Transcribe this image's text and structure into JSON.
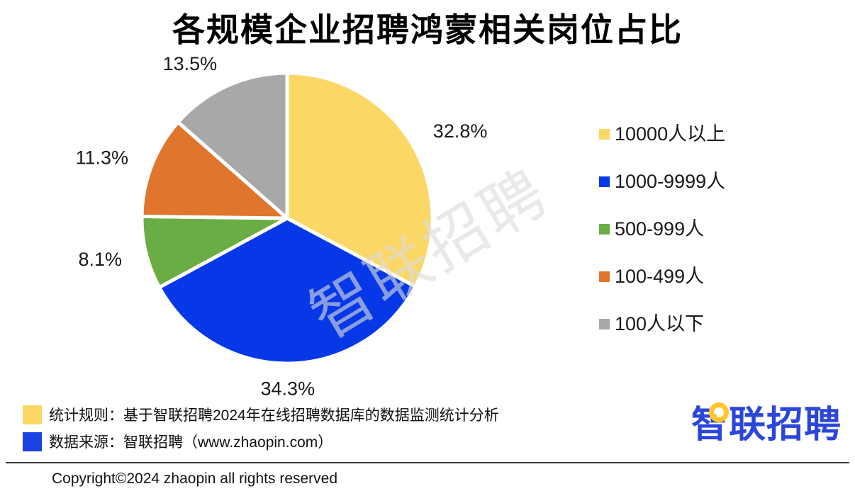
{
  "title": "各规模企业招聘鸿蒙相关岗位占比",
  "watermark_text": "智联招聘",
  "chart_data": {
    "type": "pie",
    "title": "各规模企业招聘鸿蒙相关岗位占比",
    "categories": [
      "10000人以上",
      "1000-9999人",
      "500-999人",
      "100-499人",
      "100人以下"
    ],
    "values": [
      32.8,
      34.3,
      8.1,
      11.3,
      13.5
    ],
    "value_labels": [
      "32.8%",
      "34.3%",
      "8.1%",
      "11.3%",
      "13.5%"
    ],
    "unit": "%",
    "colors": [
      "#FBD765",
      "#0638E8",
      "#6BAD45",
      "#E0762E",
      "#A8A8A8"
    ],
    "start_angle_deg": 0,
    "clockwise": true,
    "slice_gap_color": "#FFFFFF",
    "legend_position": "right"
  },
  "legend": {
    "items": [
      {
        "label": "10000人以上",
        "color": "#FBD765"
      },
      {
        "label": "1000-9999人",
        "color": "#0638E8"
      },
      {
        "label": "500-999人",
        "color": "#6BAD45"
      },
      {
        "label": "100-499人",
        "color": "#E0762E"
      },
      {
        "label": "100人以下",
        "color": "#A8A8A8"
      }
    ]
  },
  "notes": [
    {
      "swatch_color": "#FBD765",
      "text": "统计规则：基于智联招聘2024年在线招聘数据库的数据监测统计分析"
    },
    {
      "swatch_color": "#1C41E2",
      "text": "数据来源：智联招聘（www.zhaopin.com）"
    }
  ],
  "logo": {
    "text": "智联招聘",
    "color": "#2A46DB",
    "bubble_color": "#FFC62E"
  },
  "footer": {
    "copyright": "Copyright©2024 zhaopin all rights reserved"
  }
}
